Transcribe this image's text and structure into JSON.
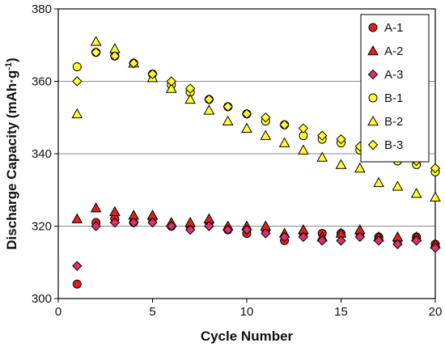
{
  "chart_data": {
    "type": "scatter",
    "xlabel": "Cycle Number",
    "ylabel_main": "Discharge Capacity (mAh·g",
    "ylabel_sup": "-1",
    "ylabel_close": ")",
    "xlim": [
      0,
      20
    ],
    "ylim": [
      300,
      380
    ],
    "xticks": [
      0,
      5,
      10,
      15,
      20
    ],
    "yticks": [
      300,
      320,
      340,
      360,
      380
    ],
    "grid": "horizontal",
    "legend_position": "top-right",
    "series": [
      {
        "name": "A-1",
        "marker": "circle",
        "color": "#e02020",
        "x": [
          1,
          2,
          3,
          4,
          5,
          6,
          7,
          8,
          9,
          10,
          11,
          12,
          13,
          14,
          15,
          16,
          17,
          18,
          19,
          20
        ],
        "y": [
          304,
          321,
          322,
          321,
          322,
          320,
          320,
          321,
          319,
          318,
          319,
          316,
          318,
          318,
          318,
          318,
          317,
          316,
          317,
          315
        ]
      },
      {
        "name": "A-2",
        "marker": "triangle",
        "color": "#e02020",
        "x": [
          1,
          2,
          3,
          4,
          5,
          6,
          7,
          8,
          9,
          10,
          11,
          12,
          13,
          14,
          15,
          16,
          17,
          18,
          19,
          20
        ],
        "y": [
          322,
          325,
          324,
          323,
          323,
          321,
          321,
          322,
          320,
          320,
          320,
          318,
          319,
          317,
          318,
          319,
          317,
          317,
          317,
          315
        ]
      },
      {
        "name": "A-3",
        "marker": "diamond",
        "color": "#e0306a",
        "x": [
          1,
          2,
          3,
          4,
          5,
          6,
          7,
          8,
          9,
          10,
          11,
          12,
          13,
          14,
          15,
          16,
          17,
          18,
          19,
          20
        ],
        "y": [
          309,
          320,
          321,
          321,
          321,
          320,
          319,
          320,
          319,
          319,
          318,
          317,
          317,
          316,
          316,
          317,
          316,
          315,
          316,
          314
        ]
      },
      {
        "name": "B-1",
        "marker": "circle",
        "color": "#ffff33",
        "x": [
          1,
          2,
          3,
          4,
          5,
          6,
          7,
          8,
          9,
          10,
          11,
          12,
          13,
          14,
          15,
          16,
          17,
          18,
          19,
          20
        ],
        "y": [
          364,
          368,
          367,
          365,
          362,
          359,
          357,
          355,
          353,
          351,
          349,
          348,
          345,
          344,
          343,
          341,
          340,
          338,
          337,
          335
        ]
      },
      {
        "name": "B-2",
        "marker": "triangle",
        "color": "#ffff33",
        "x": [
          1,
          2,
          3,
          4,
          5,
          6,
          7,
          8,
          9,
          10,
          11,
          12,
          13,
          14,
          15,
          16,
          17,
          18,
          19,
          20
        ],
        "y": [
          351,
          371,
          369,
          365,
          361,
          358,
          355,
          352,
          349,
          347,
          345,
          343,
          341,
          339,
          337,
          336,
          332,
          331,
          329,
          328
        ]
      },
      {
        "name": "B-3",
        "marker": "diamond",
        "color": "#ffff33",
        "x": [
          1,
          2,
          3,
          4,
          5,
          6,
          7,
          8,
          9,
          10,
          11,
          12,
          13,
          14,
          15,
          16,
          17,
          18,
          19,
          20
        ],
        "y": [
          360,
          368,
          367,
          365,
          362,
          360,
          358,
          355,
          353,
          351,
          350,
          348,
          347,
          345,
          344,
          342,
          341,
          339,
          338,
          336
        ]
      }
    ]
  }
}
